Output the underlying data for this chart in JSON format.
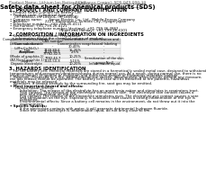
{
  "background_color": "#ffffff",
  "header_left": "Product Name: Lithium Ion Battery Cell",
  "header_right_line1": "Substance Control: SDS-049-000-10",
  "header_right_line2": "Establishment / Revision: Dec.1.2010",
  "title": "Safety data sheet for chemical products (SDS)",
  "section1_title": "1. PRODUCT AND COMPANY IDENTIFICATION",
  "section1_lines": [
    "• Product name: Lithium Ion Battery Cell",
    "• Product code: Cylindrical-type cell",
    "    (IHF88666U, IHF18650L, IHF18650A)",
    "• Company name:      Sanyo Electric Co., Ltd., Mobile Energy Company",
    "• Address:               2221  Kaminaizen, Sumoto City, Hyogo, Japan",
    "• Telephone number:   +81-799-26-4111",
    "• Fax number: +81-799-26-4121",
    "• Emergency telephone number (daytime): +81-799-26-3862",
    "                                            (Night and Holiday): +81-799-26-4101"
  ],
  "section2_title": "2. COMPOSITION / INFORMATION ON INGREDIENTS",
  "section2_intro": "• Substance or preparation: Preparation",
  "section2_sub": "  • information about the chemical nature of product:",
  "table_headers": [
    "Component chemical name /\nCommon name",
    "CAS number",
    "Concentration /\nConcentration range",
    "Classification and\nhazard labeling"
  ],
  "table_rows": [
    [
      "Lithium cobalt oxide\n(LiMn:Co:Ni:O₂)",
      "-",
      "30-40%",
      "-"
    ],
    [
      "Iron",
      "7439-89-6",
      "15-25%",
      "-"
    ],
    [
      "Aluminum",
      "7429-90-5",
      "2-5%",
      "-"
    ],
    [
      "Graphite\n(Made of graphite-1)\n(All-No of graphite-1)",
      "77782-42-5\n7782-44-7",
      "10-25%",
      "-"
    ],
    [
      "Copper",
      "7440-50-8",
      "5-15%",
      "Sensitization of the skin\ngroup No.2"
    ],
    [
      "Organic electrolyte",
      "-",
      "10-20%",
      "Inflammable liquid"
    ]
  ],
  "section3_title": "3. HAZARDS IDENTIFICATION",
  "section3_para1": "   For the battery cell, chemical materials are stored in a hermetically sealed metal case, designed to withstand\ntemperatures and pressures/vibrations/shocks during normal use. As a result, during normal use, there is no\nphysical danger of ignition or explosion and there is no danger of hazardous materials leakage.\n   However, if exposed to a fire, added mechanical shocks, decomposed, when electric without any measure,\nthe gas release cannot be operated. The battery cell case will be breached at fire patterns, hazardous\nmaterials may be released.\n   Moreover, if heated strongly by the surrounding fire, soot gas may be emitted.",
  "section3_bullet1": "• Most important hazard and effects:",
  "section3_human": "    Human health effects:",
  "section3_health_lines": [
    "        Inhalation: The release of the electrolyte has an anesthesia action and stimulates in respiratory tract.",
    "        Skin contact: The release of the electrolyte stimulates a skin. The electrolyte skin contact causes a",
    "        sore and stimulation on the skin.",
    "        Eye contact: The release of the electrolyte stimulates eyes. The electrolyte eye contact causes a sore",
    "        and stimulation on the eye. Especially, a substance that causes a strong inflammation of the eye is",
    "        contained.",
    "        Environmental effects: Since a battery cell remains in the environment, do not throw out it into the",
    "        environment."
  ],
  "section3_bullet2": "• Specific hazards:",
  "section3_specific": [
    "        If the electrolyte contacts with water, it will generate detrimental hydrogen fluoride.",
    "        Since the used electrolyte is inflammable liquid, do not bring close to fire."
  ]
}
